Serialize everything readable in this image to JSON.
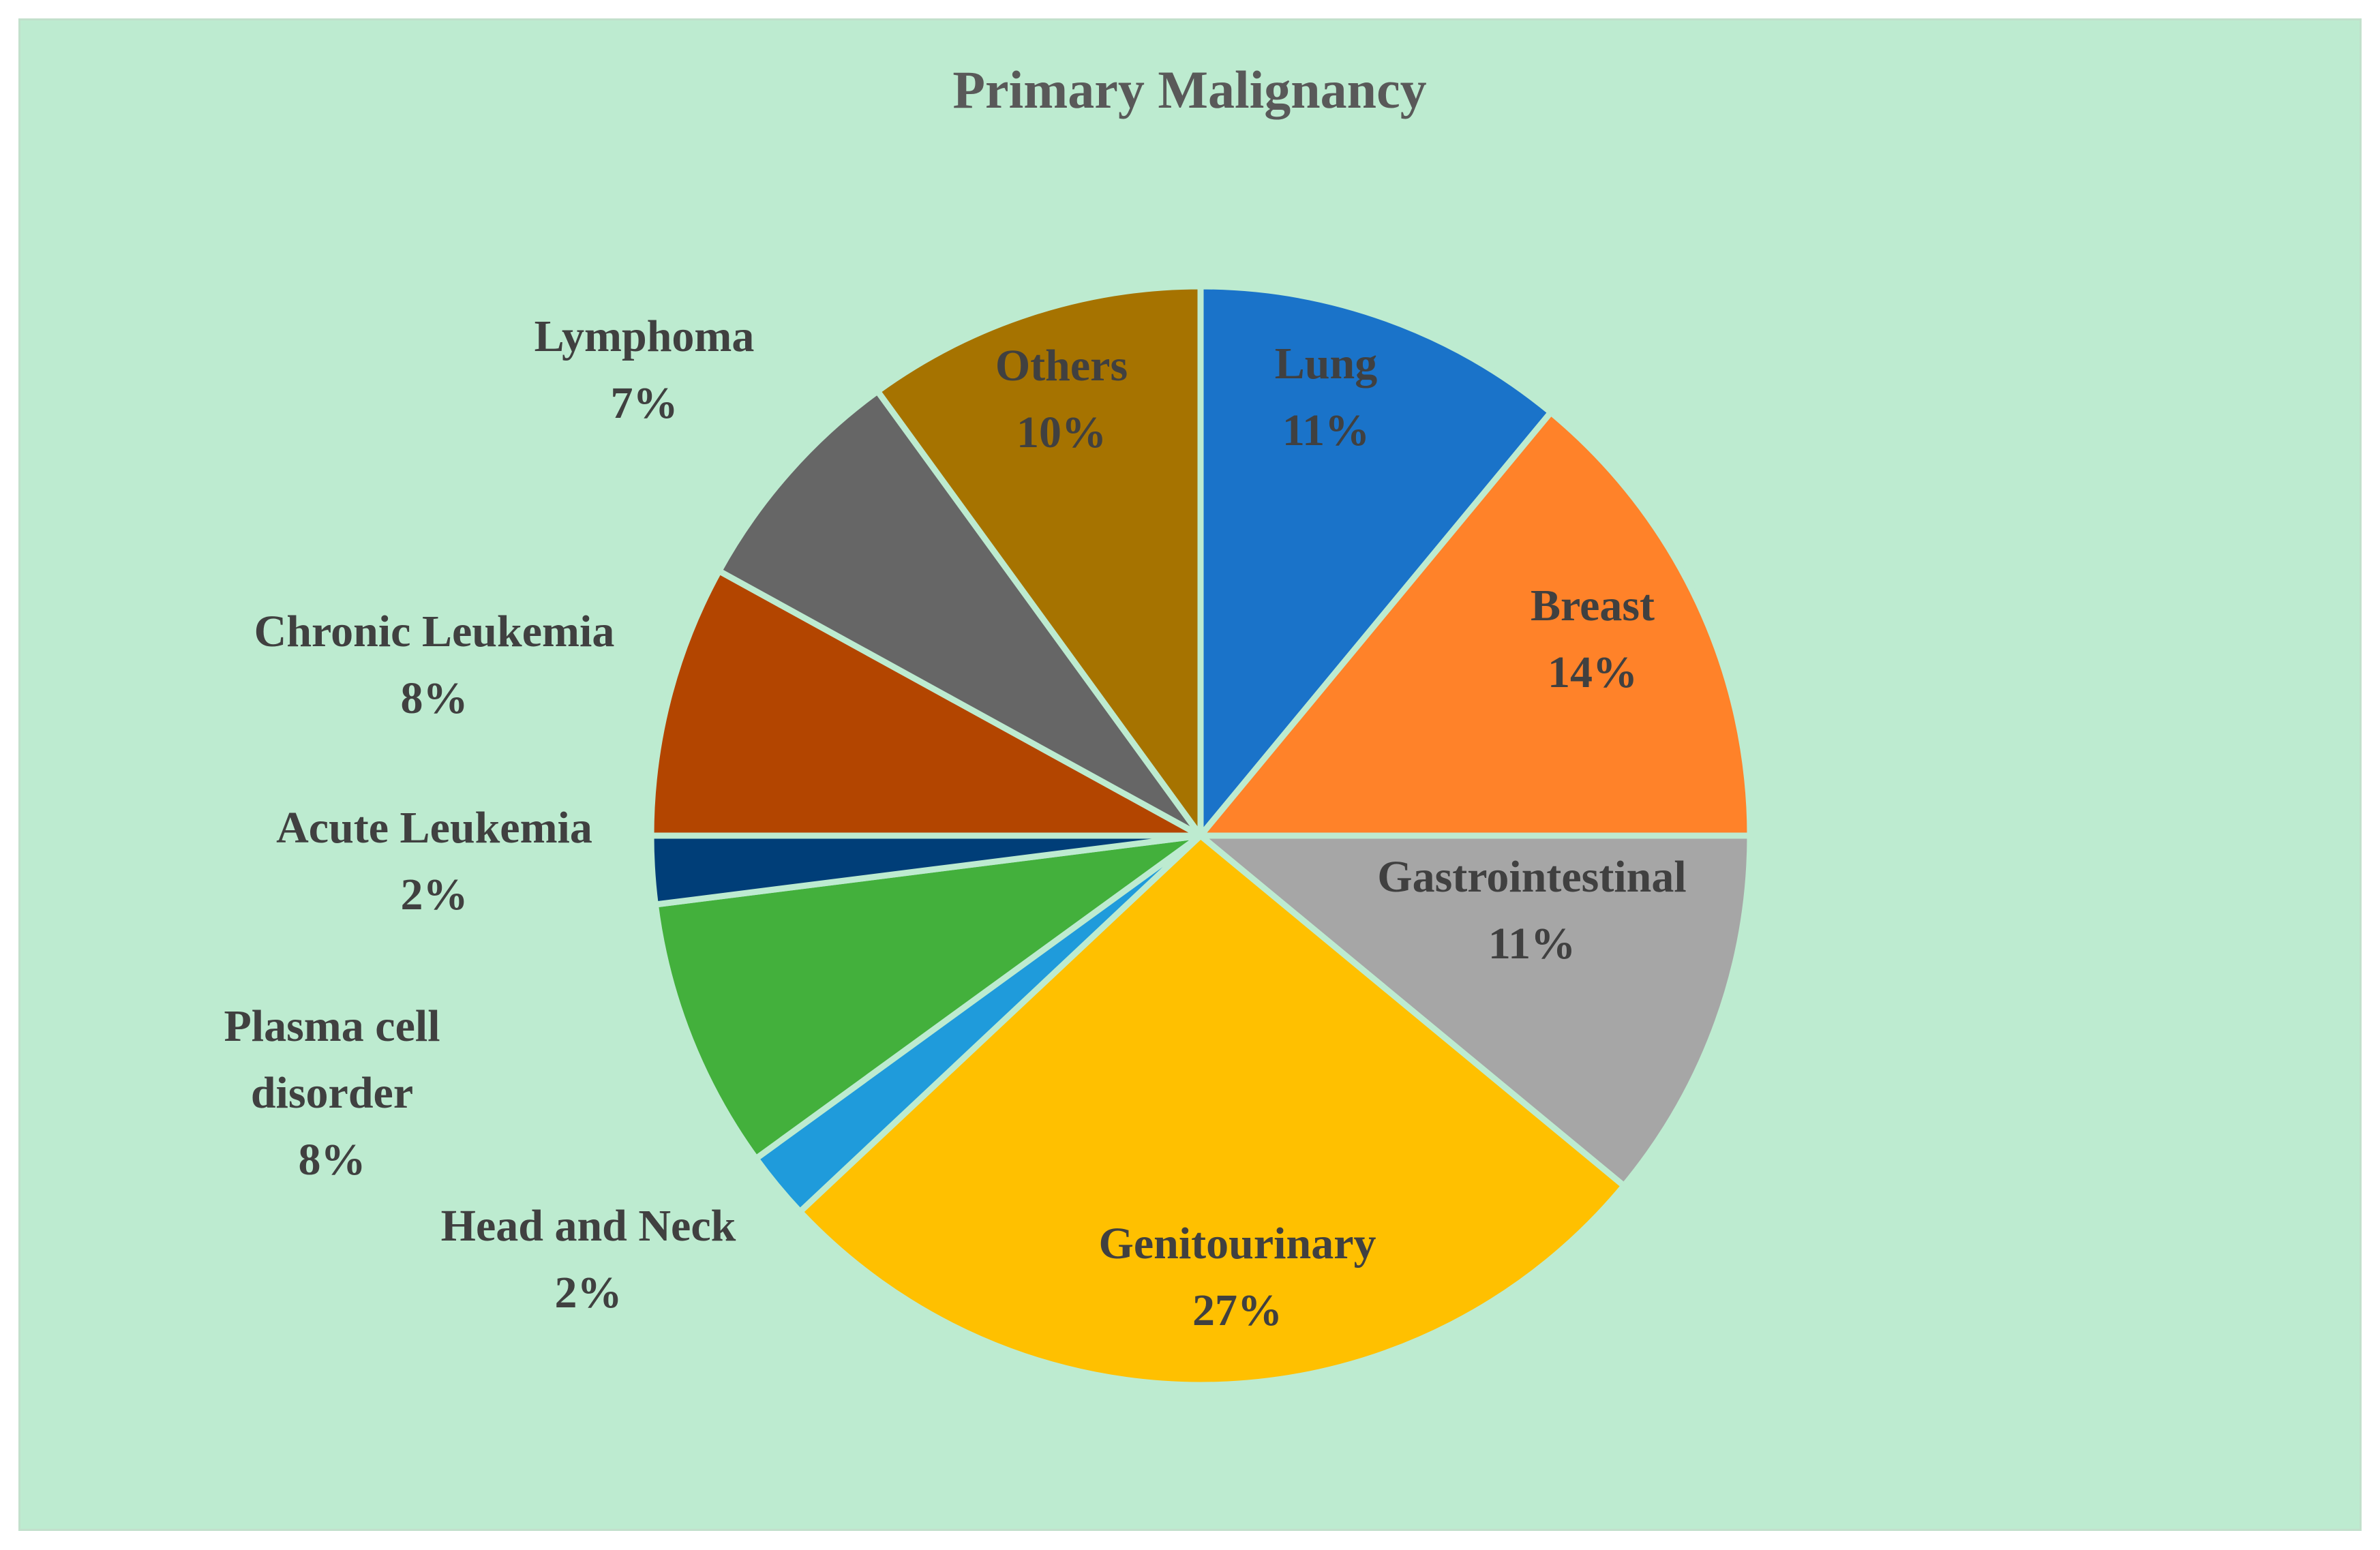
{
  "chart_data": {
    "type": "pie",
    "title": "Primary Malignancy",
    "start_angle_deg": 0,
    "direction": "clockwise",
    "slices": [
      {
        "name": "Lung",
        "value": 11,
        "pct_label": "11%",
        "label_lines": [
          "Lung",
          "11%"
        ],
        "color": "#1a73c9"
      },
      {
        "name": "Breast",
        "value": 14,
        "pct_label": "14%",
        "label_lines": [
          "Breast",
          "14%"
        ],
        "color": "#ff8229"
      },
      {
        "name": "Gastrointestinal",
        "value": 11,
        "pct_label": "11%",
        "label_lines": [
          "Gastrointestinal",
          "11%"
        ],
        "color": "#a6a6a6"
      },
      {
        "name": "Genitourinary",
        "value": 27,
        "pct_label": "27%",
        "label_lines": [
          "Genitourinary",
          "27%"
        ],
        "color": "#ffc000"
      },
      {
        "name": "Head and Neck",
        "value": 2,
        "pct_label": "2%",
        "label_lines": [
          "Head and Neck",
          "2%"
        ],
        "color": "#1f9bdb"
      },
      {
        "name": "Plasma cell disorder",
        "value": 8,
        "pct_label": "8%",
        "label_lines": [
          "Plasma cell",
          "disorder",
          "8%"
        ],
        "color": "#43b03c"
      },
      {
        "name": "Acute Leukemia",
        "value": 2,
        "pct_label": "2%",
        "label_lines": [
          "Acute Leukemia",
          "2%"
        ],
        "color": "#003e78"
      },
      {
        "name": "Chronic Leukemia",
        "value": 8,
        "pct_label": "8%",
        "label_lines": [
          "Chronic Leukemia",
          "8%"
        ],
        "color": "#b34500"
      },
      {
        "name": "Lymphoma",
        "value": 7,
        "pct_label": "7%",
        "label_lines": [
          "Lymphoma",
          "7%"
        ],
        "color": "#666666"
      },
      {
        "name": "Others",
        "value": 10,
        "pct_label": "10%",
        "label_lines": [
          "Others",
          "10%"
        ],
        "color": "#a67300"
      }
    ]
  }
}
